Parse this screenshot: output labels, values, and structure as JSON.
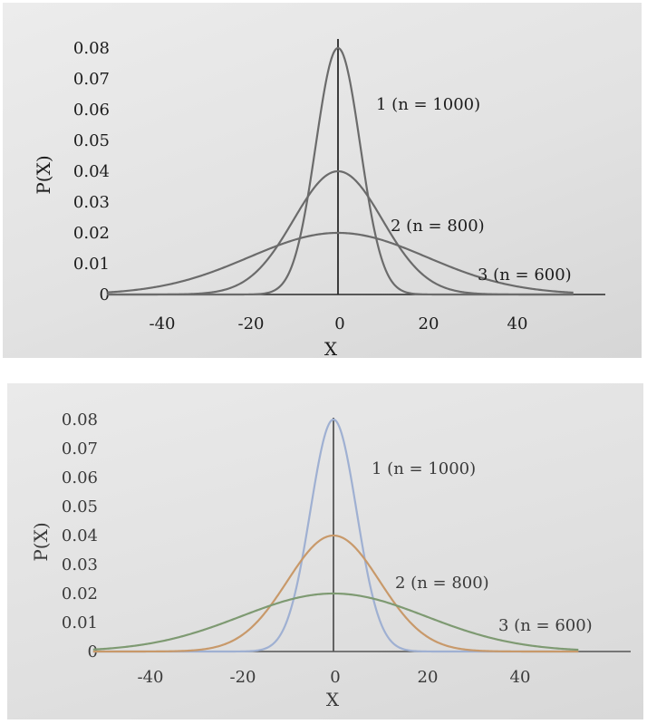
{
  "chart_data": [
    {
      "type": "line",
      "xlabel": "X",
      "ylabel": "P(X)",
      "xlim": [
        -52,
        53
      ],
      "ylim": [
        0,
        0.085
      ],
      "x_ticks": [
        "-40",
        "-20",
        "0",
        "20",
        "40"
      ],
      "y_ticks": [
        "0",
        "0.01",
        "0.02",
        "0.03",
        "0.04",
        "0.05",
        "0.06",
        "0.07",
        "0.08"
      ],
      "series": [
        {
          "name": "1 (n = 1000)",
          "mean": 0,
          "sd": 5,
          "peak": 0.08,
          "color": "#6b6b6b"
        },
        {
          "name": "2 (n = 800)",
          "mean": 0,
          "sd": 10,
          "peak": 0.04,
          "color": "#6b6b6b"
        },
        {
          "name": "3 (n = 600)",
          "mean": 0,
          "sd": 20,
          "peak": 0.02,
          "color": "#6b6b6b"
        }
      ],
      "grid": false,
      "colors": {
        "axis": "#2a2a2a"
      }
    },
    {
      "type": "line",
      "xlabel": "X",
      "ylabel": "P(X)",
      "xlim": [
        -52,
        53
      ],
      "ylim": [
        0,
        0.085
      ],
      "x_ticks": [
        "-40",
        "-20",
        "0",
        "20",
        "40"
      ],
      "y_ticks": [
        "0",
        "0.01",
        "0.02",
        "0.03",
        "0.04",
        "0.05",
        "0.06",
        "0.07",
        "0.08"
      ],
      "series": [
        {
          "name": "1 (n = 1000)",
          "mean": 0,
          "sd": 5,
          "peak": 0.08,
          "color": "#9fb0d2"
        },
        {
          "name": "2 (n = 800)",
          "mean": 0,
          "sd": 10,
          "peak": 0.04,
          "color": "#c8996a"
        },
        {
          "name": "3 (n = 600)",
          "mean": 0,
          "sd": 20,
          "peak": 0.02,
          "color": "#7e9a72"
        }
      ],
      "grid": false,
      "colors": {
        "axis": "#555555"
      }
    }
  ]
}
